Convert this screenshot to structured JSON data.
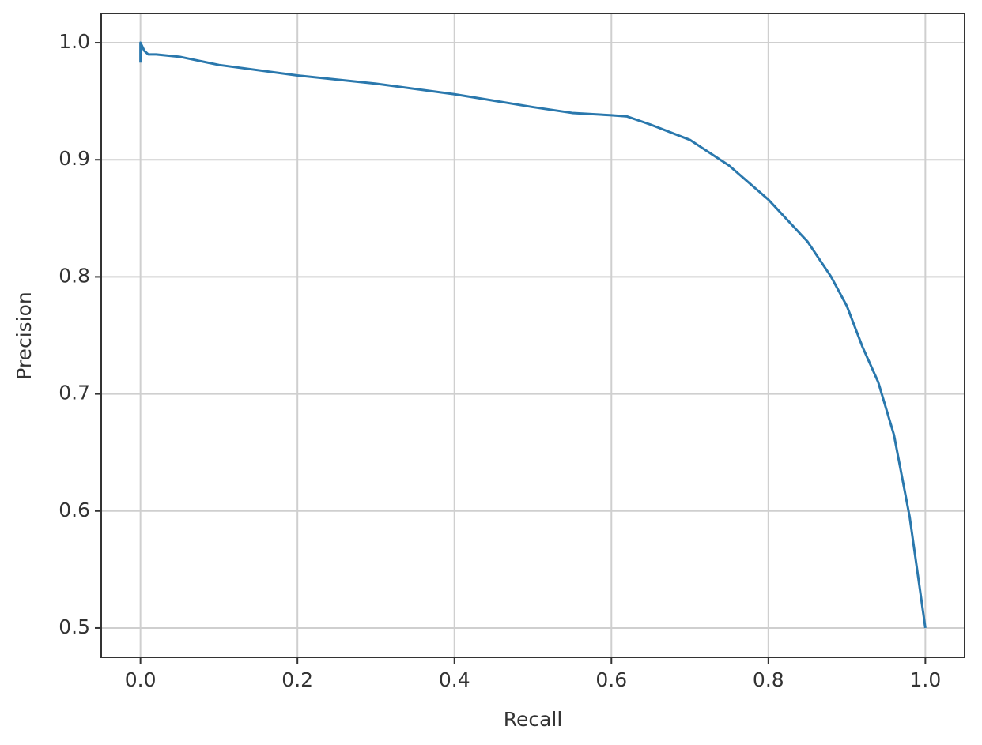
{
  "chart_data": {
    "type": "line",
    "x_label": "Recall",
    "y_label": "Precision",
    "x": [
      0,
      0,
      0.005,
      0.01,
      0.02,
      0.05,
      0.1,
      0.2,
      0.3,
      0.4,
      0.5,
      0.55,
      0.6,
      0.62,
      0.65,
      0.7,
      0.75,
      0.8,
      0.85,
      0.88,
      0.9,
      0.92,
      0.94,
      0.96,
      0.98,
      1.0
    ],
    "values": [
      0.983,
      1.0,
      0.993,
      0.99,
      0.99,
      0.988,
      0.981,
      0.972,
      0.965,
      0.956,
      0.945,
      0.94,
      0.938,
      0.937,
      0.93,
      0.917,
      0.895,
      0.866,
      0.83,
      0.8,
      0.775,
      0.74,
      0.71,
      0.665,
      0.595,
      0.5
    ],
    "color": "#2a78ad",
    "xlim": [
      -0.05,
      1.05
    ],
    "ylim": [
      0.475,
      1.025
    ],
    "xticks": [
      {
        "value": 0,
        "label": "0.0"
      },
      0.2,
      0.4,
      0.6,
      0.8,
      {
        "value": 1,
        "label": "1.0"
      }
    ],
    "yticks": [
      0.5,
      0.6,
      0.7,
      0.8,
      0.9,
      {
        "value": 1,
        "label": "1.0"
      }
    ],
    "grid": true
  }
}
